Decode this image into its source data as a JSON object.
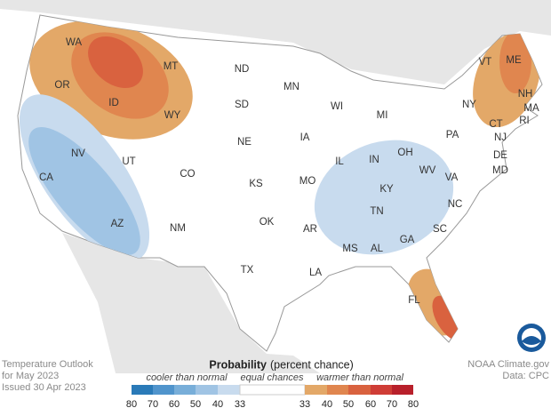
{
  "title": "Temperature Outlook",
  "subtitle": "for May 2023",
  "issued": "Issued 30 Apr 2023",
  "credit": "NOAA Climate.gov",
  "source": "Data: CPC",
  "states": [
    "WA",
    "OR",
    "ID",
    "MT",
    "WY",
    "NV",
    "CA",
    "UT",
    "AZ",
    "CO",
    "NM",
    "ND",
    "SD",
    "NE",
    "KS",
    "OK",
    "TX",
    "MN",
    "IA",
    "MO",
    "AR",
    "LA",
    "WI",
    "IL",
    "MI",
    "IN",
    "OH",
    "KY",
    "TN",
    "MS",
    "AL",
    "GA",
    "WV",
    "VA",
    "NC",
    "SC",
    "FL",
    "PA",
    "NY",
    "VT",
    "ME",
    "NH",
    "MA",
    "CT",
    "RI",
    "NJ",
    "DE",
    "MD"
  ],
  "legend": {
    "title": "Probability",
    "title_note": "(percent chance)",
    "cooler_label": "cooler than normal",
    "equal_label": "equal chances",
    "warmer_label": "warmer than normal",
    "cooler_ticks": [
      80,
      70,
      60,
      50,
      40,
      33
    ],
    "warmer_ticks": [
      33,
      40,
      50,
      60,
      70,
      80
    ],
    "cooler_colors": [
      "#2a7ab8",
      "#5094cc",
      "#78aed9",
      "#a0c4e4",
      "#c8dbee"
    ],
    "equal_color": "#ffffff",
    "warmer_colors": [
      "#e3a868",
      "#e0864f",
      "#d9623f",
      "#cf3d36",
      "#b8202b"
    ]
  }
}
